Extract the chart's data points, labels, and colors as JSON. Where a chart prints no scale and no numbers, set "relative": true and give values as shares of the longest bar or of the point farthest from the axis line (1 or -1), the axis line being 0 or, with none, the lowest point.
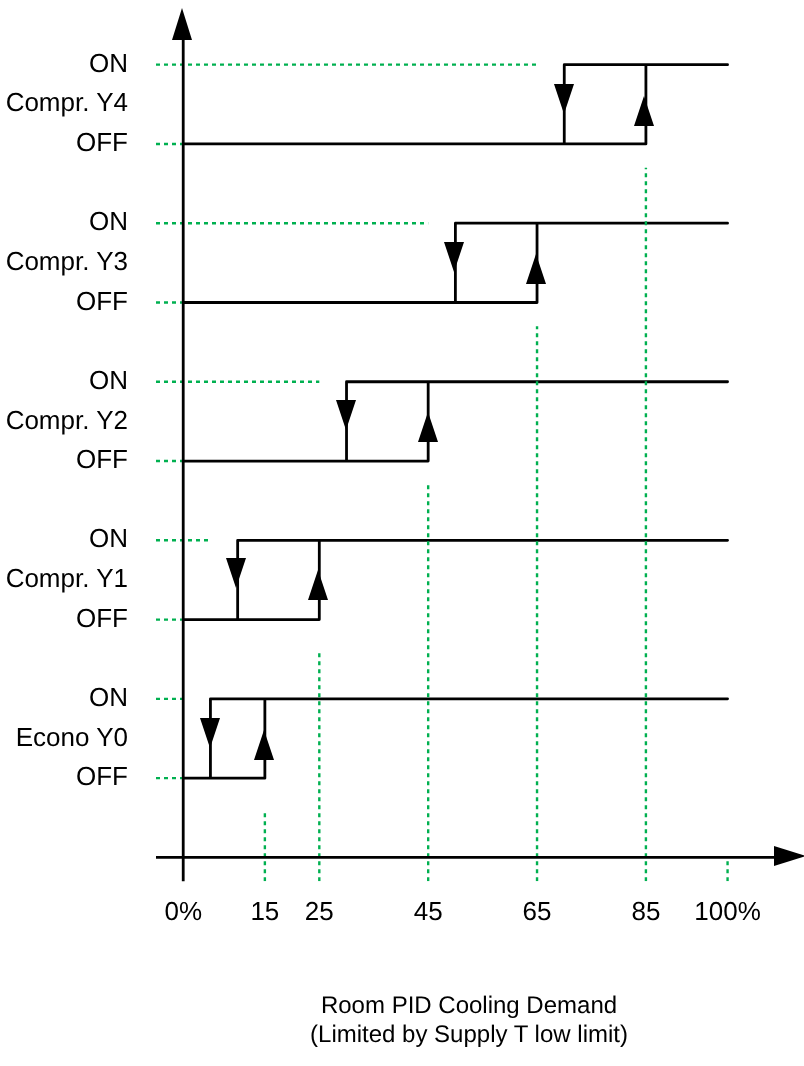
{
  "chart_data": {
    "type": "line",
    "relative": true,
    "xlabel": "Room PID Cooling Demand\n(Limited by Supply T low limit)",
    "annotations": [
      "OFF",
      "Econo Y0",
      "ON",
      "OFF",
      "Compr. Y1",
      "ON",
      "OFF",
      "Compr. Y2",
      "ON",
      "OFF",
      "Compr. Y3",
      "ON",
      "OFF",
      "Compr. Y4",
      "ON"
    ],
    "xlim": [
      -5,
      110
    ],
    "xticks": [
      {
        "value": 0,
        "label": "0%"
      },
      15,
      25,
      45,
      65,
      85,
      {
        "value": 100,
        "label": "100%"
      }
    ],
    "marker": "none",
    "series": [
      {
        "color": "#00b050",
        "line_style": "dotted",
        "x": [
          -5,
          0
        ],
        "values": [
          0.1,
          0.1
        ]
      },
      {
        "color": "#00b050",
        "line_style": "dotted",
        "x": [
          -5,
          0
        ],
        "values": [
          0.2,
          0.2
        ]
      },
      {
        "color": "#00b050",
        "line_style": "dotted",
        "x": [
          -5,
          0
        ],
        "values": [
          0.3,
          0.3
        ]
      },
      {
        "color": "#00b050",
        "line_style": "dotted",
        "x": [
          -5,
          5
        ],
        "values": [
          0.4,
          0.4
        ]
      },
      {
        "color": "#00b050",
        "line_style": "dotted",
        "x": [
          -5,
          0
        ],
        "values": [
          0.5,
          0.5
        ]
      },
      {
        "color": "#00b050",
        "line_style": "dotted",
        "x": [
          -5,
          25
        ],
        "values": [
          0.6,
          0.6
        ]
      },
      {
        "color": "#00b050",
        "line_style": "dotted",
        "x": [
          -5,
          0
        ],
        "values": [
          0.7,
          0.7
        ]
      },
      {
        "color": "#00b050",
        "line_style": "dotted",
        "x": [
          -5,
          45
        ],
        "values": [
          0.8,
          0.8
        ]
      },
      {
        "color": "#00b050",
        "line_style": "dotted",
        "x": [
          -5,
          0
        ],
        "values": [
          0.9,
          0.9
        ]
      },
      {
        "color": "#00b050",
        "line_style": "dotted",
        "x": [
          -5,
          65
        ],
        "values": [
          1,
          1
        ]
      },
      {
        "color": "#00b050",
        "line_style": "dotted",
        "x": [
          15,
          15
        ],
        "values": [
          -0.03,
          0.06
        ]
      },
      {
        "color": "#00b050",
        "line_style": "dotted",
        "x": [
          25,
          25
        ],
        "values": [
          -0.03,
          0.26
        ]
      },
      {
        "color": "#00b050",
        "line_style": "dotted",
        "x": [
          45,
          45
        ],
        "values": [
          -0.03,
          0.47
        ]
      },
      {
        "color": "#00b050",
        "line_style": "dotted",
        "x": [
          65,
          65
        ],
        "values": [
          -0.03,
          0.67
        ]
      },
      {
        "color": "#00b050",
        "line_style": "dotted",
        "x": [
          85,
          85
        ],
        "values": [
          -0.03,
          0.87
        ]
      },
      {
        "color": "#00b050",
        "line_style": "dotted",
        "x": [
          100,
          100
        ],
        "values": [
          -0.03,
          0
        ]
      },
      {
        "color": "#000000",
        "x": [
          0,
          15,
          15,
          100,
          5,
          5
        ],
        "values": [
          0.1,
          0.1,
          0.2,
          0.2,
          0.2,
          0.1
        ]
      },
      {
        "color": "#000000",
        "x": [
          0,
          25,
          25,
          100,
          10,
          10
        ],
        "values": [
          0.3,
          0.3,
          0.4,
          0.4,
          0.4,
          0.3
        ]
      },
      {
        "color": "#000000",
        "x": [
          0,
          45,
          45,
          100,
          30,
          30
        ],
        "values": [
          0.5,
          0.5,
          0.6,
          0.6,
          0.6,
          0.5
        ]
      },
      {
        "color": "#000000",
        "x": [
          0,
          65,
          65,
          100,
          50,
          50
        ],
        "values": [
          0.7,
          0.7,
          0.8,
          0.8,
          0.8,
          0.7
        ]
      },
      {
        "color": "#000000",
        "x": [
          0,
          85,
          85,
          100,
          70,
          70
        ],
        "values": [
          0.9,
          0.9,
          1,
          1,
          1,
          0.9
        ]
      }
    ]
  }
}
